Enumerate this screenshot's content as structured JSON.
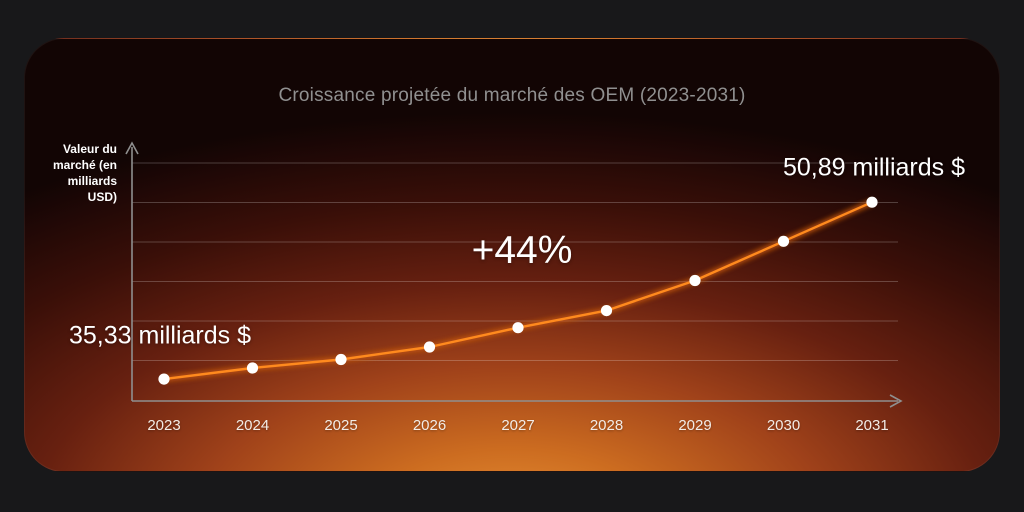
{
  "chart_data": {
    "type": "line",
    "title": "Croissance projetée du marché des OEM (2023-2031)",
    "ylabel": "Valeur du marché (en milliards USD)",
    "ylabel_lines": [
      "Valeur du",
      "marché (en",
      "milliards",
      "USD)"
    ],
    "xlabel": "",
    "categories": [
      "2023",
      "2024",
      "2025",
      "2026",
      "2027",
      "2028",
      "2029",
      "2030",
      "2031"
    ],
    "values": [
      35.33,
      36.3,
      37.05,
      38.15,
      39.85,
      41.35,
      44.0,
      47.45,
      50.89
    ],
    "ylim": [
      33.4,
      56.1
    ],
    "grid": "horizontal",
    "gridline_count": 6,
    "legend": "none",
    "annotations": [
      {
        "text": "35,33 milliards $",
        "anchor": "first-point"
      },
      {
        "text": "+44%",
        "anchor": "center"
      },
      {
        "text": "50,89 milliards $",
        "anchor": "last-point"
      }
    ]
  },
  "labels": {
    "start_value": "35,33 milliards $",
    "growth_percent": "+44%",
    "end_value": "50,89 milliards $"
  },
  "colors": {
    "line": "#ff8a1e",
    "line_glow": "#c2570e",
    "points": "#ffffff",
    "title_text": "#909090",
    "axis": "#8f8f8f",
    "gridline": "rgba(255,255,255,0.22)",
    "label_text": "#ffffff",
    "page_background": "#18181a",
    "card_glow_core": "#e89135"
  }
}
